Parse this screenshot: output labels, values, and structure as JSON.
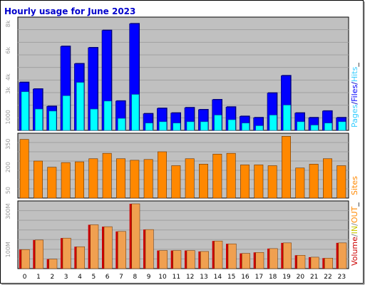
{
  "title": "Hourly usage for June 2023",
  "colors": {
    "background": "#c0c0c0",
    "pages": "#0000ff",
    "hits": "#33ccff",
    "files": "#00ffff",
    "sites": "#ff8800",
    "in": "#ffcc66",
    "out": "#cc0000",
    "volume": "#f0a050"
  },
  "chart_data": [
    {
      "type": "bar",
      "categories": [
        "0",
        "1",
        "2",
        "3",
        "4",
        "5",
        "6",
        "7",
        "8",
        "9",
        "10",
        "11",
        "12",
        "13",
        "14",
        "15",
        "16",
        "17",
        "18",
        "19",
        "20",
        "21",
        "22",
        "23"
      ],
      "series": [
        {
          "name": "Hits",
          "values": [
            3600,
            3100,
            1800,
            6300,
            5000,
            6200,
            7500,
            2200,
            8000,
            1250,
            1650,
            1300,
            1700,
            1550,
            2300,
            1750,
            1050,
            950,
            2800,
            4100,
            1300,
            950,
            1450,
            950
          ]
        },
        {
          "name": "Files",
          "values": [
            2900,
            1600,
            1450,
            2600,
            3600,
            1600,
            2200,
            900,
            2700,
            550,
            650,
            550,
            650,
            650,
            1150,
            800,
            550,
            350,
            1150,
            1900,
            650,
            400,
            550,
            650
          ]
        }
      ],
      "legend": [
        "Pages",
        "/",
        "Files",
        "/",
        "Hits",
        "_"
      ],
      "ytick_labels": [
        "8k",
        "6k",
        "4k",
        "3k",
        "1000"
      ],
      "ytick_values": [
        8000,
        6000,
        4000,
        3000,
        1000
      ],
      "ylim": [
        0,
        8500
      ],
      "grid": true
    },
    {
      "type": "bar",
      "categories": [
        "0",
        "1",
        "2",
        "3",
        "4",
        "5",
        "6",
        "7",
        "8",
        "9",
        "10",
        "11",
        "12",
        "13",
        "14",
        "15",
        "16",
        "17",
        "18",
        "19",
        "20",
        "21",
        "22",
        "23"
      ],
      "series": [
        {
          "name": "Sites",
          "values": [
            380,
            240,
            200,
            230,
            235,
            255,
            290,
            255,
            245,
            250,
            300,
            210,
            255,
            220,
            285,
            290,
            215,
            215,
            210,
            400,
            195,
            220,
            255,
            210
          ]
        }
      ],
      "legend": [
        "Sites"
      ],
      "ytick_labels": [
        "350",
        "200",
        "50"
      ],
      "ytick_values": [
        350,
        200,
        50
      ],
      "ylim": [
        0,
        420
      ],
      "grid": true
    },
    {
      "type": "bar",
      "categories": [
        "0",
        "1",
        "2",
        "3",
        "4",
        "5",
        "6",
        "7",
        "8",
        "9",
        "10",
        "11",
        "12",
        "13",
        "14",
        "15",
        "16",
        "17",
        "18",
        "19",
        "20",
        "21",
        "22",
        "23"
      ],
      "series": [
        {
          "name": "Volume",
          "values": [
            100,
            150,
            50,
            160,
            115,
            230,
            220,
            195,
            340,
            205,
            95,
            95,
            95,
            90,
            145,
            130,
            80,
            85,
            105,
            135,
            70,
            60,
            55,
            135
          ]
        }
      ],
      "legend": [
        "Volume",
        "/",
        "IN",
        "/",
        "OUT",
        "_"
      ],
      "ytick_labels": [
        "300M",
        "100M"
      ],
      "ytick_values": [
        300,
        100
      ],
      "ylim": [
        0,
        355
      ],
      "grid": true
    }
  ]
}
